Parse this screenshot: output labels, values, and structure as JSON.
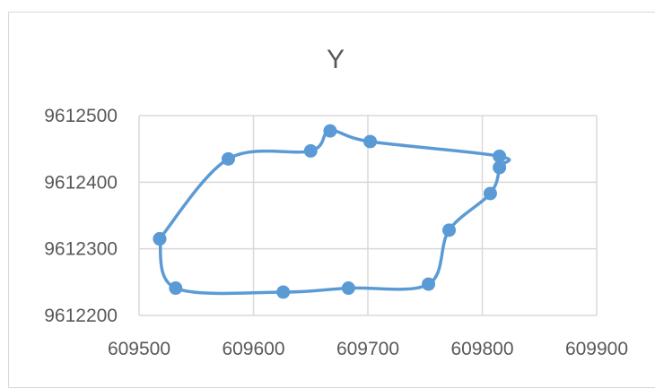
{
  "chart_data": {
    "type": "scatter",
    "title": "Y",
    "xlabel": "",
    "ylabel": "",
    "xlim": [
      609500,
      609900
    ],
    "ylim": [
      9612200,
      9612500
    ],
    "x_ticks": [
      "609500",
      "609600",
      "609700",
      "609800",
      "609900"
    ],
    "y_ticks": [
      "9612200",
      "9612300",
      "9612400",
      "9612500"
    ],
    "grid": true,
    "legend": "none",
    "line_style": "smoothed",
    "series_color": "#5b9bd5",
    "series": [
      {
        "points": [
          {
            "x": 609518,
            "y": 9612315
          },
          {
            "x": 609578,
            "y": 9612435
          },
          {
            "x": 609650,
            "y": 9612447
          },
          {
            "x": 609667,
            "y": 9612477
          },
          {
            "x": 609702,
            "y": 9612461
          },
          {
            "x": 609815,
            "y": 9612439
          },
          {
            "x": 609815,
            "y": 9612422
          },
          {
            "x": 609807,
            "y": 9612383
          },
          {
            "x": 609771,
            "y": 9612328
          },
          {
            "x": 609753,
            "y": 9612247
          },
          {
            "x": 609683,
            "y": 9612241
          },
          {
            "x": 609626,
            "y": 9612235
          },
          {
            "x": 609532,
            "y": 9612241
          },
          {
            "x": 609518,
            "y": 9612315
          }
        ]
      }
    ]
  }
}
